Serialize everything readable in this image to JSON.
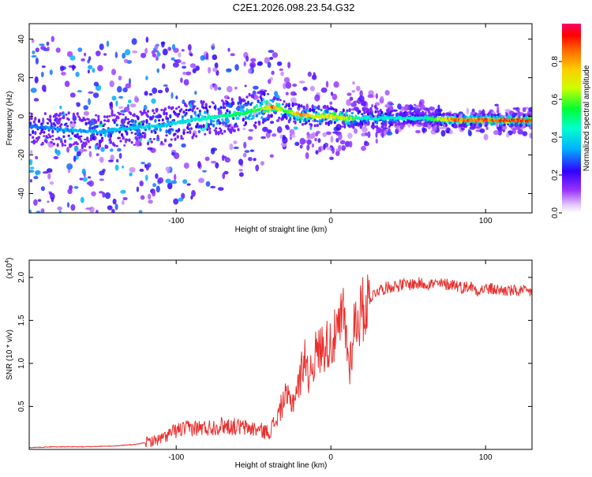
{
  "title": "C2E1.2026.098.23.54.G32",
  "colors": {
    "line": "#e8302e",
    "axis": "#000000",
    "background": "#ffffff",
    "colormap": [
      "#ffffff",
      "#cc99ff",
      "#9933ff",
      "#3300ff",
      "#00ccff",
      "#00ff66",
      "#ccff00",
      "#ff9900",
      "#ff0000",
      "#ff0066"
    ]
  },
  "chart_data": [
    {
      "type": "heatmap",
      "name": "spectrogram",
      "xlabel": "Height of straight line (km)",
      "ylabel": "Frequency (Hz)",
      "xlim": [
        -195,
        130
      ],
      "ylim": [
        -50,
        48
      ],
      "xticks": [
        -100,
        0,
        100
      ],
      "xtick_labels": [
        "-100",
        "0",
        "100"
      ],
      "yticks": [
        -40,
        -20,
        0,
        20,
        40
      ],
      "ytick_labels": [
        "-40",
        "-20",
        "0",
        "20",
        "40"
      ],
      "colorbar": {
        "label": "Normalized spectral amplitude",
        "range": [
          0,
          1
        ],
        "ticks": [
          0.0,
          0.2,
          0.4,
          0.6,
          0.8
        ],
        "tick_labels": [
          "0.0",
          "0.2",
          "0.4",
          "0.6",
          "0.8"
        ]
      },
      "ridge": {
        "x": [
          -195,
          -170,
          -150,
          -130,
          -110,
          -90,
          -70,
          -55,
          -45,
          -38,
          -30,
          -20,
          -10,
          0,
          10,
          20,
          40,
          60,
          80,
          100,
          130
        ],
        "freq": [
          -5,
          -7,
          -8,
          -6,
          -5,
          -2,
          0,
          2,
          4,
          5,
          3,
          1,
          0,
          0,
          -1,
          -1,
          -1,
          -1,
          -2,
          -2,
          -2
        ],
        "amplitude": [
          0.3,
          0.35,
          0.35,
          0.4,
          0.4,
          0.45,
          0.5,
          0.55,
          0.6,
          0.9,
          0.6,
          0.85,
          0.7,
          0.75,
          0.7,
          0.45,
          0.45,
          0.45,
          0.9,
          0.9,
          0.95
        ]
      }
    },
    {
      "type": "line",
      "name": "snr",
      "xlabel": "Height of straight line (km)",
      "ylabel": "SNR (10 * v/v)",
      "yscale_label": "(x10",
      "yscale_exp": "4",
      "xlim": [
        -195,
        130
      ],
      "ylim": [
        0,
        2.2
      ],
      "xticks": [
        -100,
        0,
        100
      ],
      "xtick_labels": [
        "-100",
        "0",
        "100"
      ],
      "yticks": [
        0.5,
        1.0,
        1.5,
        2.0
      ],
      "ytick_labels": [
        "0.5",
        "1.0",
        "1.5",
        "2.0"
      ],
      "series": [
        {
          "name": "SNR",
          "x": [
            -195,
            -180,
            -160,
            -140,
            -125,
            -110,
            -100,
            -90,
            -80,
            -70,
            -60,
            -50,
            -40,
            -35,
            -30,
            -25,
            -20,
            -17,
            -15,
            -10,
            -5,
            0,
            5,
            8,
            10,
            12,
            15,
            20,
            25,
            30,
            40,
            50,
            60,
            70,
            80,
            85,
            90,
            95,
            100,
            110,
            120,
            130
          ],
          "y": [
            0.02,
            0.03,
            0.03,
            0.04,
            0.06,
            0.12,
            0.22,
            0.25,
            0.25,
            0.28,
            0.26,
            0.24,
            0.2,
            0.35,
            0.6,
            0.55,
            0.8,
            1.15,
            0.85,
            1.1,
            1.2,
            1.25,
            1.35,
            1.6,
            1.3,
            0.95,
            1.45,
            1.6,
            1.75,
            1.85,
            1.9,
            1.92,
            1.93,
            1.92,
            1.92,
            1.88,
            1.9,
            1.85,
            1.87,
            1.85,
            1.84,
            1.83
          ]
        }
      ]
    }
  ]
}
